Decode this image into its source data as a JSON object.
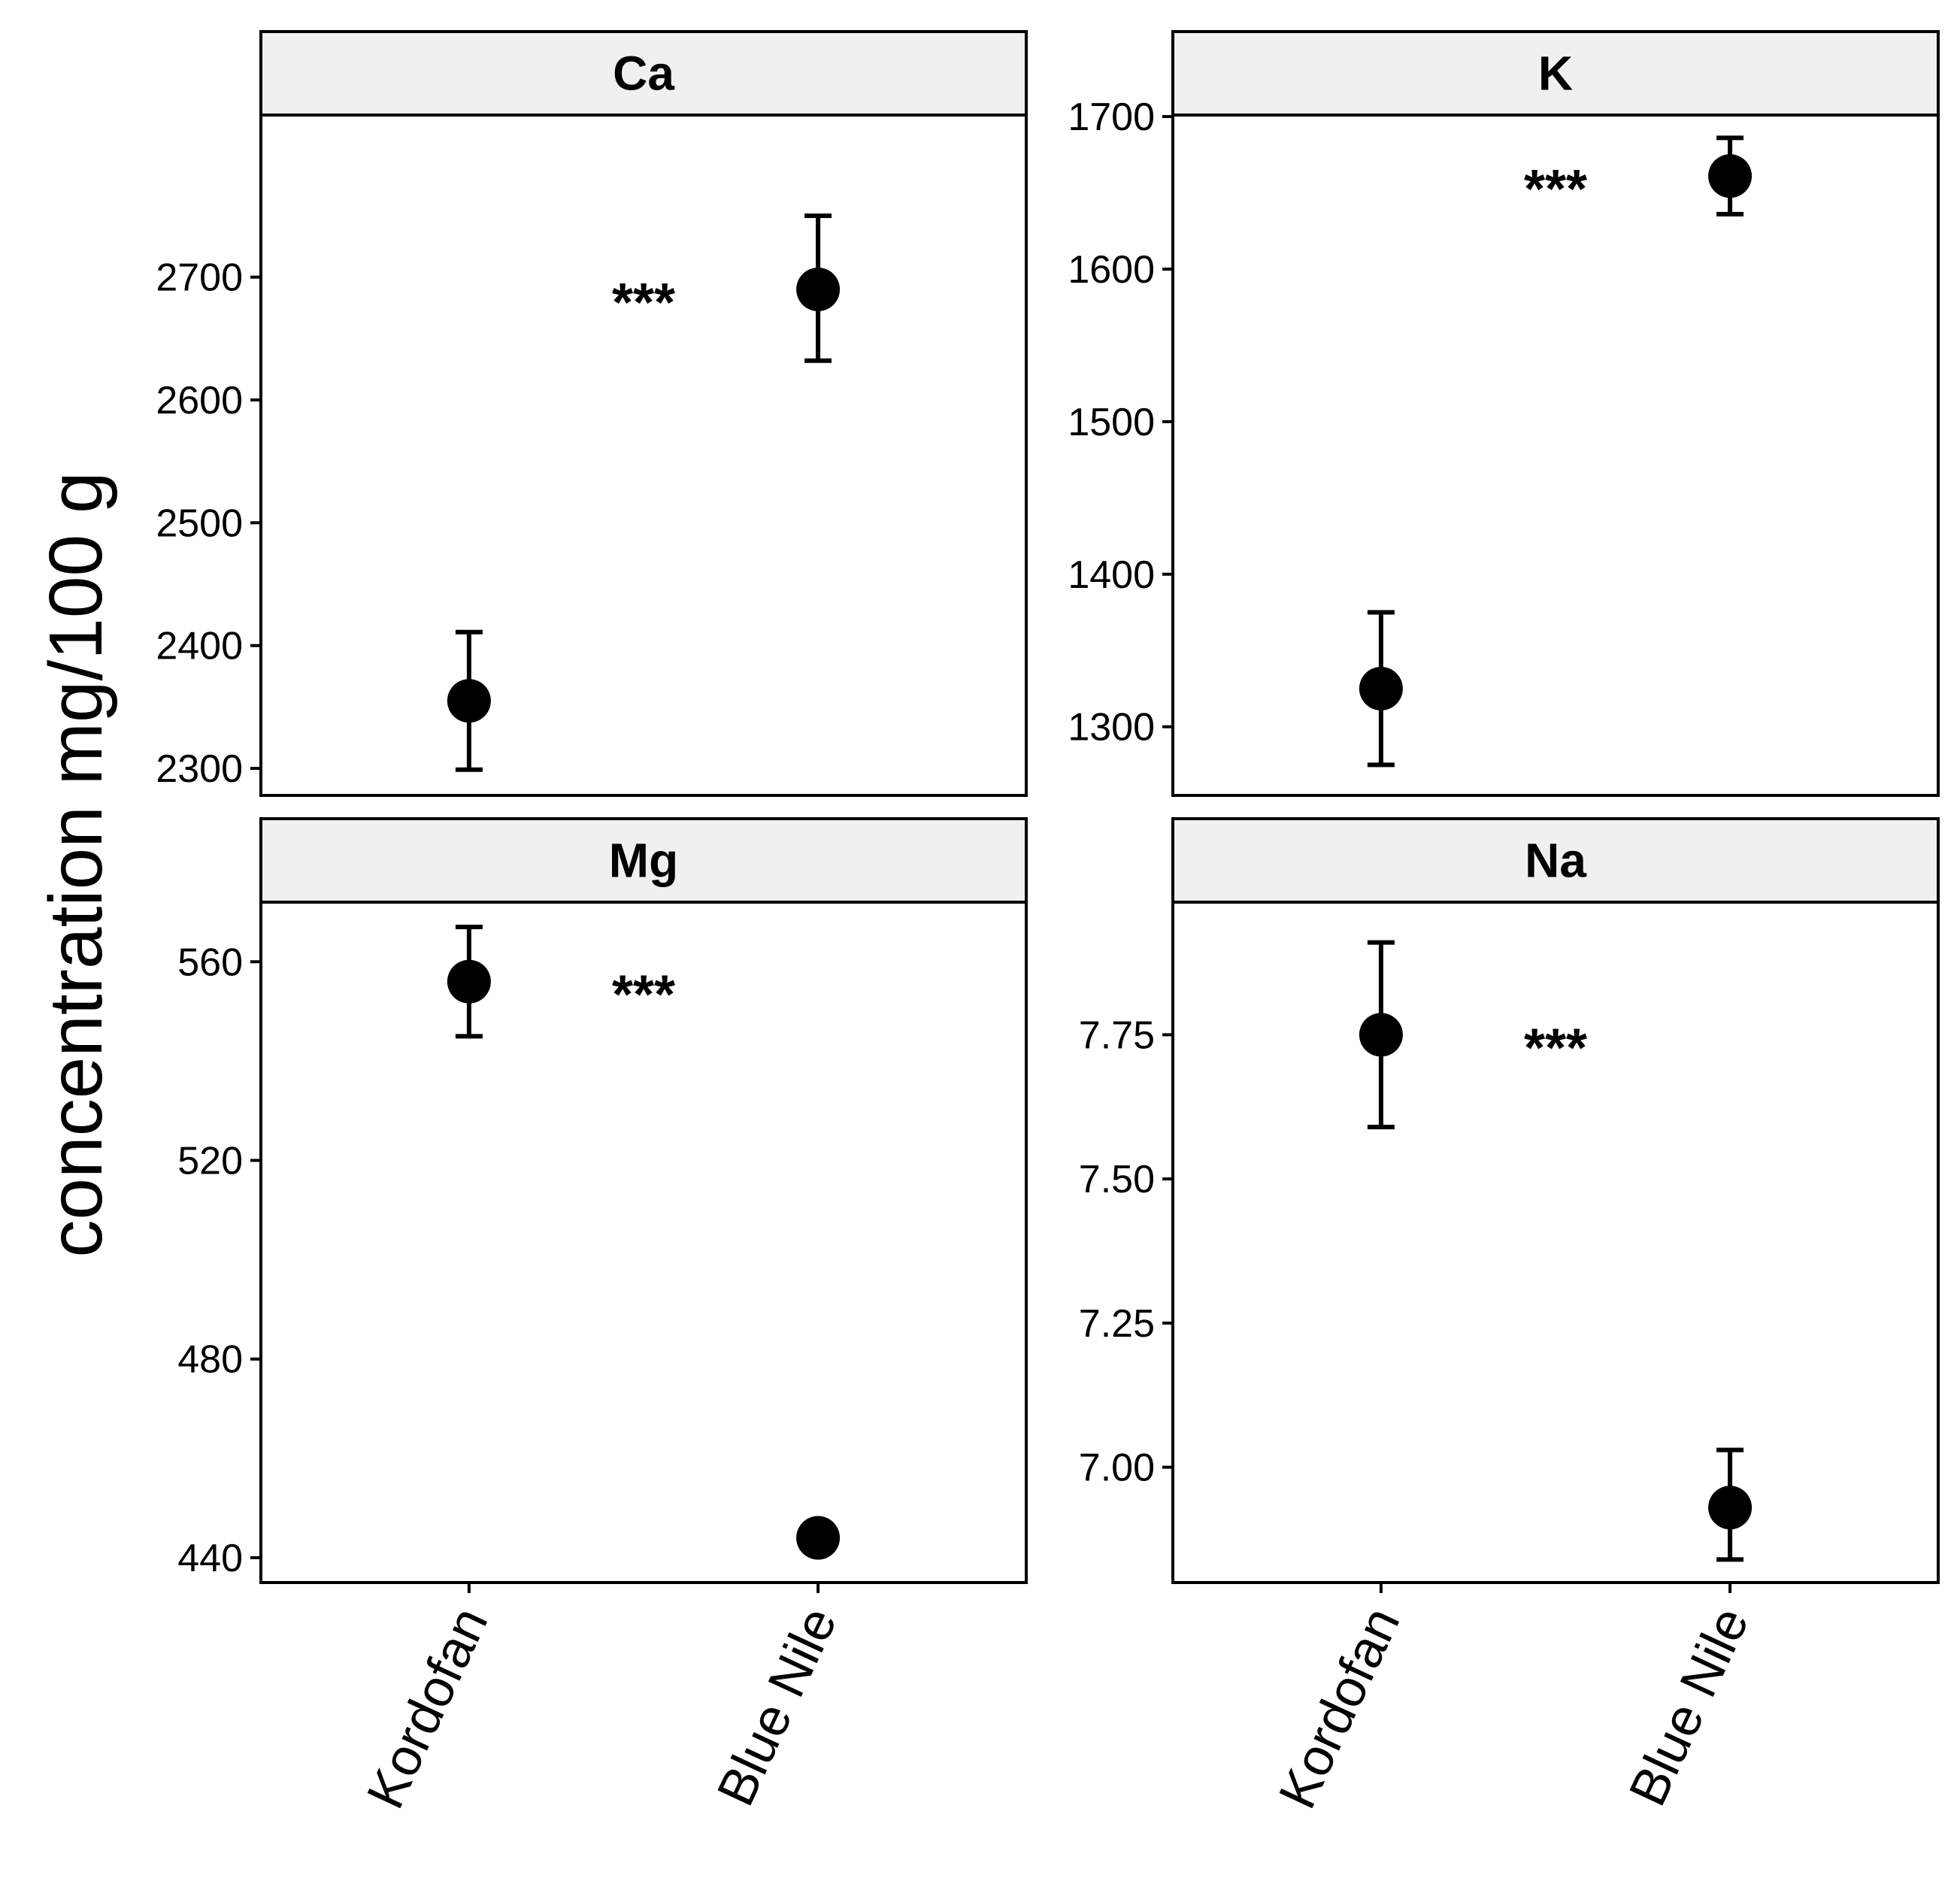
{
  "chart_data": {
    "type": "scatter",
    "layout": "facet-2x2",
    "ylabel": "concentration mg/100 g",
    "categories": [
      "Kordofan",
      "Blue Nile"
    ],
    "panels": [
      {
        "title": "Ca",
        "significance": "***",
        "ylim": [
          2278,
          2832
        ],
        "yticks": [
          2300,
          2400,
          2500,
          2600,
          2700
        ],
        "ytick_labels": [
          "2300",
          "2400",
          "2500",
          "2600",
          "2700"
        ],
        "points": [
          {
            "category": "Kordofan",
            "mean": 2355,
            "lower": 2299,
            "upper": 2411
          },
          {
            "category": "Blue Nile",
            "mean": 2690,
            "lower": 2632,
            "upper": 2750
          }
        ]
      },
      {
        "title": "K",
        "significance": "***",
        "ylim": [
          1255,
          1701
        ],
        "yticks": [
          1300,
          1400,
          1500,
          1600,
          1700
        ],
        "ytick_labels": [
          "1300",
          "1400",
          "1500",
          "1600",
          "1700"
        ],
        "points": [
          {
            "category": "Kordofan",
            "mean": 1325,
            "lower": 1275,
            "upper": 1375
          },
          {
            "category": "Blue Nile",
            "mean": 1661,
            "lower": 1636,
            "upper": 1686
          }
        ]
      },
      {
        "title": "Mg",
        "significance": "***",
        "ylim": [
          435,
          572
        ],
        "yticks": [
          440,
          480,
          520,
          560
        ],
        "ytick_labels": [
          "440",
          "480",
          "520",
          "560"
        ],
        "points": [
          {
            "category": "Kordofan",
            "mean": 556,
            "lower": 545,
            "upper": 567
          },
          {
            "category": "Blue Nile",
            "mean": 444,
            "lower": 442,
            "upper": 446
          }
        ]
      },
      {
        "title": "Na",
        "significance": "***",
        "ylim": [
          6.8,
          7.98
        ],
        "yticks": [
          7.0,
          7.25,
          7.5,
          7.75
        ],
        "ytick_labels": [
          "7.00",
          "7.25",
          "7.50",
          "7.75"
        ],
        "points": [
          {
            "category": "Kordofan",
            "mean": 7.75,
            "lower": 7.59,
            "upper": 7.91
          },
          {
            "category": "Blue Nile",
            "mean": 6.93,
            "lower": 6.84,
            "upper": 7.03
          }
        ]
      }
    ]
  },
  "colors": {
    "strip_background": "#f0f0f0",
    "ink": "#000000",
    "panel_background": "#ffffff"
  }
}
